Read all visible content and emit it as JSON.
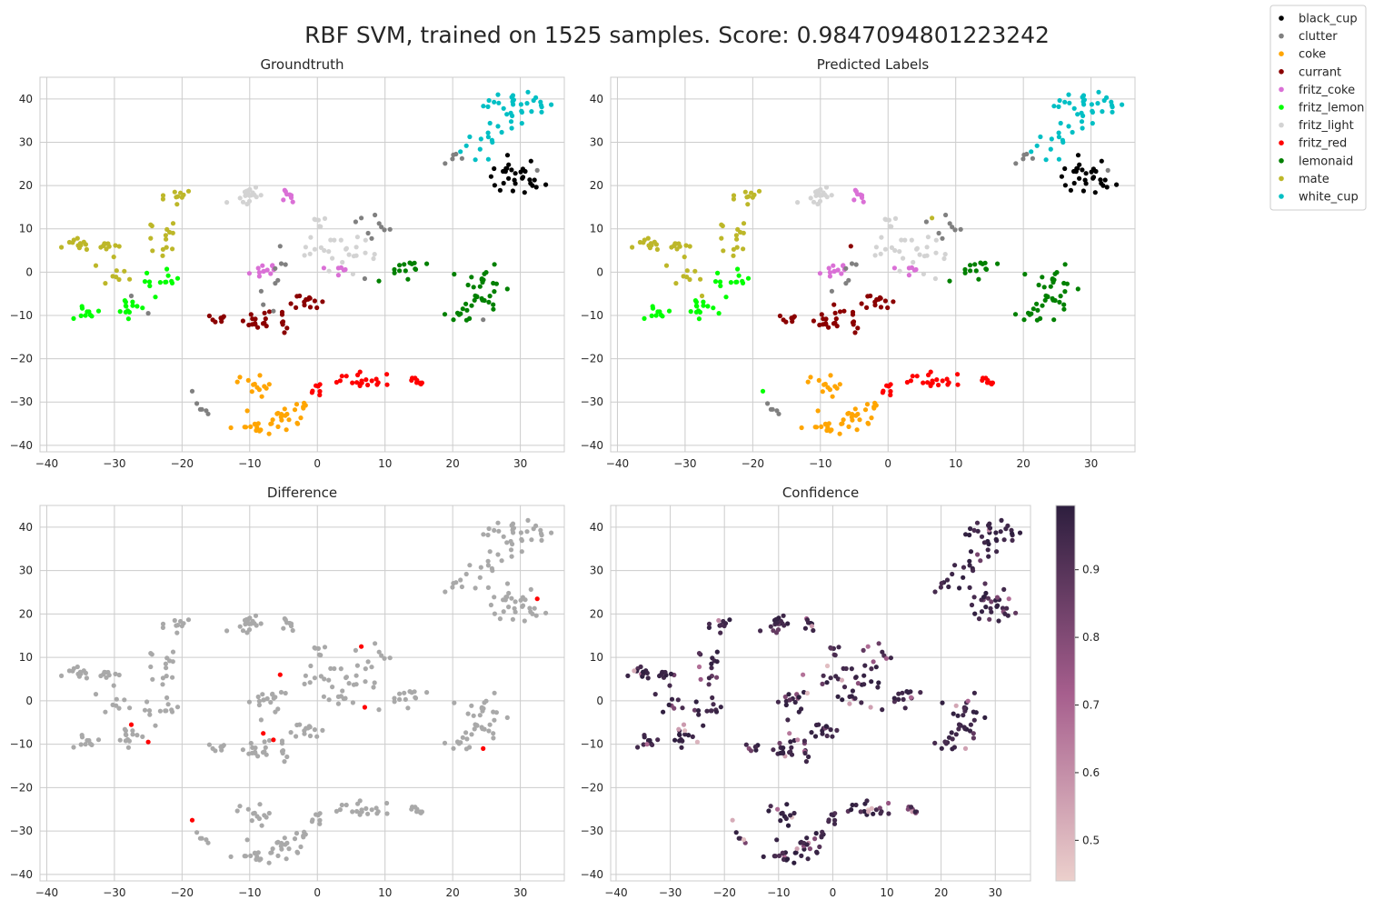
{
  "figure": {
    "title": "RBF SVM, trained on 1525 samples. Score: 0.9847094801223242",
    "background": "#ffffff",
    "axes_face": "#ffffff",
    "grid_color": "#cccccc"
  },
  "legend": {
    "placement": "upper-right",
    "entries": [
      {
        "label": "black_cup",
        "color": "#000000"
      },
      {
        "label": "clutter",
        "color": "#808080"
      },
      {
        "label": "coke",
        "color": "#ffa500"
      },
      {
        "label": "currant",
        "color": "#8b0000"
      },
      {
        "label": "fritz_coke",
        "color": "#da70d6"
      },
      {
        "label": "fritz_lemon",
        "color": "#00ff00"
      },
      {
        "label": "fritz_light",
        "color": "#d3d3d3"
      },
      {
        "label": "fritz_red",
        "color": "#ff0000"
      },
      {
        "label": "lemonaid",
        "color": "#008000"
      },
      {
        "label": "mate",
        "color": "#bdb729"
      },
      {
        "label": "white_cup",
        "color": "#00bfc4"
      }
    ]
  },
  "colorbar": {
    "range": [
      0.44,
      0.995
    ],
    "ticks": [
      "0.5",
      "0.6",
      "0.7",
      "0.8",
      "0.9"
    ],
    "tick_values": [
      0.5,
      0.6,
      0.7,
      0.8,
      0.9
    ],
    "color_low": "#ecd0cc",
    "color_mid": "#a65e8d",
    "color_high": "#2d1e3e"
  },
  "chart_data": {
    "type": "scatter",
    "xlim": [
      -41,
      36.5
    ],
    "ylim": [
      -41.5,
      45
    ],
    "xticks": [
      -40,
      -30,
      -20,
      -10,
      0,
      10,
      20,
      30
    ],
    "yticks": [
      -40,
      -30,
      -20,
      -10,
      0,
      10,
      20,
      30,
      40
    ],
    "xtick_labels": [
      "−40",
      "−30",
      "−20",
      "−10",
      "0",
      "10",
      "20",
      "30"
    ],
    "ytick_labels": [
      "−40",
      "−30",
      "−20",
      "−10",
      "0",
      "10",
      "20",
      "30",
      "40"
    ],
    "grid": true,
    "panels": [
      {
        "title": "Groundtruth",
        "mode": "groundtruth"
      },
      {
        "title": "Predicted Labels",
        "mode": "predicted"
      },
      {
        "title": "Difference",
        "mode": "difference"
      },
      {
        "title": "Confidence",
        "mode": "confidence"
      }
    ],
    "difference_colors": {
      "match": "#a9a9a9",
      "mismatch": "#ff0000"
    },
    "clusters": [
      {
        "label": "white_cup",
        "cx": 29.5,
        "cy": 38.5,
        "sx": 2.5,
        "sy": 2.0,
        "n": 32
      },
      {
        "label": "white_cup",
        "cx": 23.5,
        "cy": 30.5,
        "sx": 2.5,
        "sy": 2.2,
        "n": 14
      },
      {
        "label": "black_cup",
        "cx": 29.5,
        "cy": 21.5,
        "sx": 2.2,
        "sy": 2.2,
        "n": 30
      },
      {
        "label": "mate",
        "cx": -21.0,
        "cy": 17.5,
        "sx": 1.3,
        "sy": 0.8,
        "n": 10
      },
      {
        "label": "mate",
        "cx": -23.0,
        "cy": 8.0,
        "sx": 1.5,
        "sy": 2.5,
        "n": 14
      },
      {
        "label": "mate",
        "cx": -35.0,
        "cy": 6.5,
        "sx": 1.3,
        "sy": 0.9,
        "n": 12
      },
      {
        "label": "mate",
        "cx": -31.0,
        "cy": 6.0,
        "sx": 1.0,
        "sy": 1.2,
        "n": 10
      },
      {
        "label": "mate",
        "cx": -30.0,
        "cy": -0.5,
        "sx": 1.3,
        "sy": 0.9,
        "n": 8
      },
      {
        "label": "fritz_lemon",
        "cx": -22.5,
        "cy": -2.0,
        "sx": 1.5,
        "sy": 1.5,
        "n": 12
      },
      {
        "label": "fritz_lemon",
        "cx": -34.0,
        "cy": -10.0,
        "sx": 1.0,
        "sy": 1.0,
        "n": 10
      },
      {
        "label": "fritz_lemon",
        "cx": -27.0,
        "cy": -8.0,
        "sx": 1.5,
        "sy": 1.3,
        "n": 14
      },
      {
        "label": "fritz_light",
        "cx": -10.0,
        "cy": 17.5,
        "sx": 1.0,
        "sy": 0.9,
        "n": 18
      },
      {
        "label": "fritz_light",
        "cx": 2.5,
        "cy": 5.5,
        "sx": 2.0,
        "sy": 2.0,
        "n": 18
      },
      {
        "label": "fritz_light",
        "cx": 0.0,
        "cy": 12.0,
        "sx": 0.9,
        "sy": 0.8,
        "n": 6
      },
      {
        "label": "fritz_light",
        "cx": 6.5,
        "cy": 2.5,
        "sx": 1.0,
        "sy": 2.5,
        "n": 8
      },
      {
        "label": "fritz_coke",
        "cx": -4.5,
        "cy": 18.0,
        "sx": 0.6,
        "sy": 0.9,
        "n": 8
      },
      {
        "label": "fritz_coke",
        "cx": -8.0,
        "cy": 0.5,
        "sx": 1.3,
        "sy": 1.3,
        "n": 12
      },
      {
        "label": "fritz_coke",
        "cx": 3.0,
        "cy": 1.0,
        "sx": 1.0,
        "sy": 0.8,
        "n": 6
      },
      {
        "label": "currant",
        "cx": -9.0,
        "cy": -11.0,
        "sx": 1.2,
        "sy": 1.2,
        "n": 16
      },
      {
        "label": "currant",
        "cx": -15.0,
        "cy": -11.0,
        "sx": 1.0,
        "sy": 0.6,
        "n": 8
      },
      {
        "label": "currant",
        "cx": -2.0,
        "cy": -7.0,
        "sx": 1.3,
        "sy": 0.8,
        "n": 14
      },
      {
        "label": "currant",
        "cx": -5.0,
        "cy": -11.5,
        "sx": 0.6,
        "sy": 1.5,
        "n": 6
      },
      {
        "label": "lemonaid",
        "cx": 12.5,
        "cy": 1.0,
        "sx": 1.5,
        "sy": 1.2,
        "n": 14
      },
      {
        "label": "lemonaid",
        "cx": 24.5,
        "cy": -3.0,
        "sx": 1.5,
        "sy": 2.5,
        "n": 28
      },
      {
        "label": "lemonaid",
        "cx": 21.5,
        "cy": -9.0,
        "sx": 1.3,
        "sy": 1.2,
        "n": 10
      },
      {
        "label": "coke",
        "cx": -9.5,
        "cy": -26.0,
        "sx": 1.5,
        "sy": 1.5,
        "n": 14
      },
      {
        "label": "coke",
        "cx": -10.0,
        "cy": -36.0,
        "sx": 1.2,
        "sy": 0.8,
        "n": 12
      },
      {
        "label": "coke",
        "cx": -5.5,
        "cy": -33.5,
        "sx": 1.5,
        "sy": 1.3,
        "n": 18
      },
      {
        "label": "coke",
        "cx": -2.5,
        "cy": -30.5,
        "sx": 0.8,
        "sy": 0.8,
        "n": 5
      },
      {
        "label": "fritz_red",
        "cx": 7.0,
        "cy": -25.5,
        "sx": 2.0,
        "sy": 1.3,
        "n": 20
      },
      {
        "label": "fritz_red",
        "cx": 15.0,
        "cy": -25.5,
        "sx": 1.0,
        "sy": 0.6,
        "n": 10
      },
      {
        "label": "fritz_red",
        "cx": 0.0,
        "cy": -27.0,
        "sx": 0.9,
        "sy": 0.8,
        "n": 7
      },
      {
        "label": "clutter",
        "cx": 8.5,
        "cy": 10.0,
        "sx": 1.8,
        "sy": 1.5,
        "n": 8
      },
      {
        "label": "clutter",
        "cx": 21.0,
        "cy": 27.5,
        "sx": 1.5,
        "sy": 1.5,
        "n": 5
      },
      {
        "label": "clutter",
        "cx": -16.5,
        "cy": -31.5,
        "sx": 1.0,
        "sy": 1.0,
        "n": 5
      },
      {
        "label": "clutter",
        "cx": -6.5,
        "cy": 0.5,
        "sx": 1.5,
        "sy": 3.0,
        "n": 6
      }
    ],
    "mismatches": [
      {
        "x": 6.5,
        "y": 12.5,
        "pred": "mate"
      },
      {
        "x": -27.5,
        "y": -5.5,
        "pred": "mate"
      },
      {
        "x": -25.0,
        "y": -9.5,
        "pred": "fritz_lemon"
      },
      {
        "x": -8.0,
        "y": -7.5,
        "pred": "currant"
      },
      {
        "x": -6.5,
        "y": -9.0,
        "pred": "currant"
      },
      {
        "x": 24.5,
        "y": -11.0,
        "pred": "lemonaid"
      },
      {
        "x": -18.5,
        "y": -27.5,
        "pred": "fritz_lemon"
      },
      {
        "x": 32.5,
        "y": 23.5,
        "pred": "clutter"
      },
      {
        "x": -5.5,
        "y": 6.0,
        "pred": "currant"
      },
      {
        "x": 7.0,
        "y": -1.5,
        "pred": "fritz_light"
      }
    ]
  }
}
